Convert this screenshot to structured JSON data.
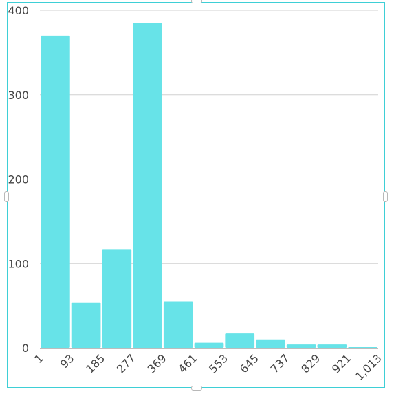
{
  "chart_data": {
    "type": "bar",
    "title": "",
    "xlabel": "",
    "ylabel": "",
    "bin_edges": [
      1,
      93,
      185,
      277,
      369,
      461,
      553,
      645,
      737,
      829,
      921,
      1013
    ],
    "x_tick_labels": [
      "1",
      "93",
      "185",
      "277",
      "369",
      "461",
      "553",
      "645",
      "737",
      "829",
      "921",
      "1,013"
    ],
    "values": [
      370,
      54,
      117,
      385,
      55,
      6,
      17,
      10,
      4,
      4,
      1
    ],
    "y_ticks": [
      0,
      100,
      200,
      300,
      400
    ],
    "y_tick_labels": [
      "0",
      "100",
      "200",
      "300",
      "400"
    ],
    "ylim": [
      0,
      400
    ],
    "grid": true,
    "legend": "none",
    "bar_color": "#67e3e8",
    "frame_color": "#3ecfd6"
  }
}
